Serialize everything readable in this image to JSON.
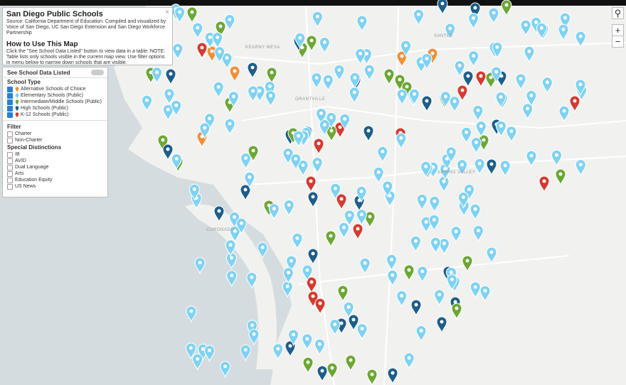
{
  "info": {
    "title": "San Diego Public Schools",
    "close": "×",
    "source": "Source: California Department of Education. Compiled and visualized by Voice of San Diego, UC San Diego Extension and San Diego Workforce Partnership",
    "how_title": "How to Use This Map",
    "how_text": "Click the \"See School Data Listed\" button to view data in a table. NOTE: Table lists only schools visible in the current map view. Use filter options in menu below to narrow down schools that are visible."
  },
  "toggle": {
    "label": "See School Data Listed"
  },
  "legend": {
    "title": "School Type",
    "items": [
      {
        "label": "Alternative Schools of Choice",
        "color": "#f0903c"
      },
      {
        "label": "Elementary Schools (Public)",
        "color": "#7fd2f3"
      },
      {
        "label": "Intermediate/Middle Schools (Public)",
        "color": "#6ca733"
      },
      {
        "label": "High Schools (Public)",
        "color": "#1c5e8c"
      },
      {
        "label": "K-12 Schools (Public)",
        "color": "#d63a30"
      }
    ]
  },
  "filter": {
    "title": "Filter",
    "options": [
      "Charter",
      "Non-Charter"
    ],
    "distinctions_title": "Special Distinctions",
    "distinctions": [
      "IB",
      "AVID",
      "Dual Language",
      "Arts",
      "Education Equity",
      "US News"
    ]
  },
  "map_labels": [
    "KEARNY MESA",
    "SANTEE",
    "GRANTVILLE",
    "CORONADO",
    "SPRING VALLEY"
  ],
  "controls": {
    "zoom_in": "+",
    "zoom_out": "−"
  }
}
